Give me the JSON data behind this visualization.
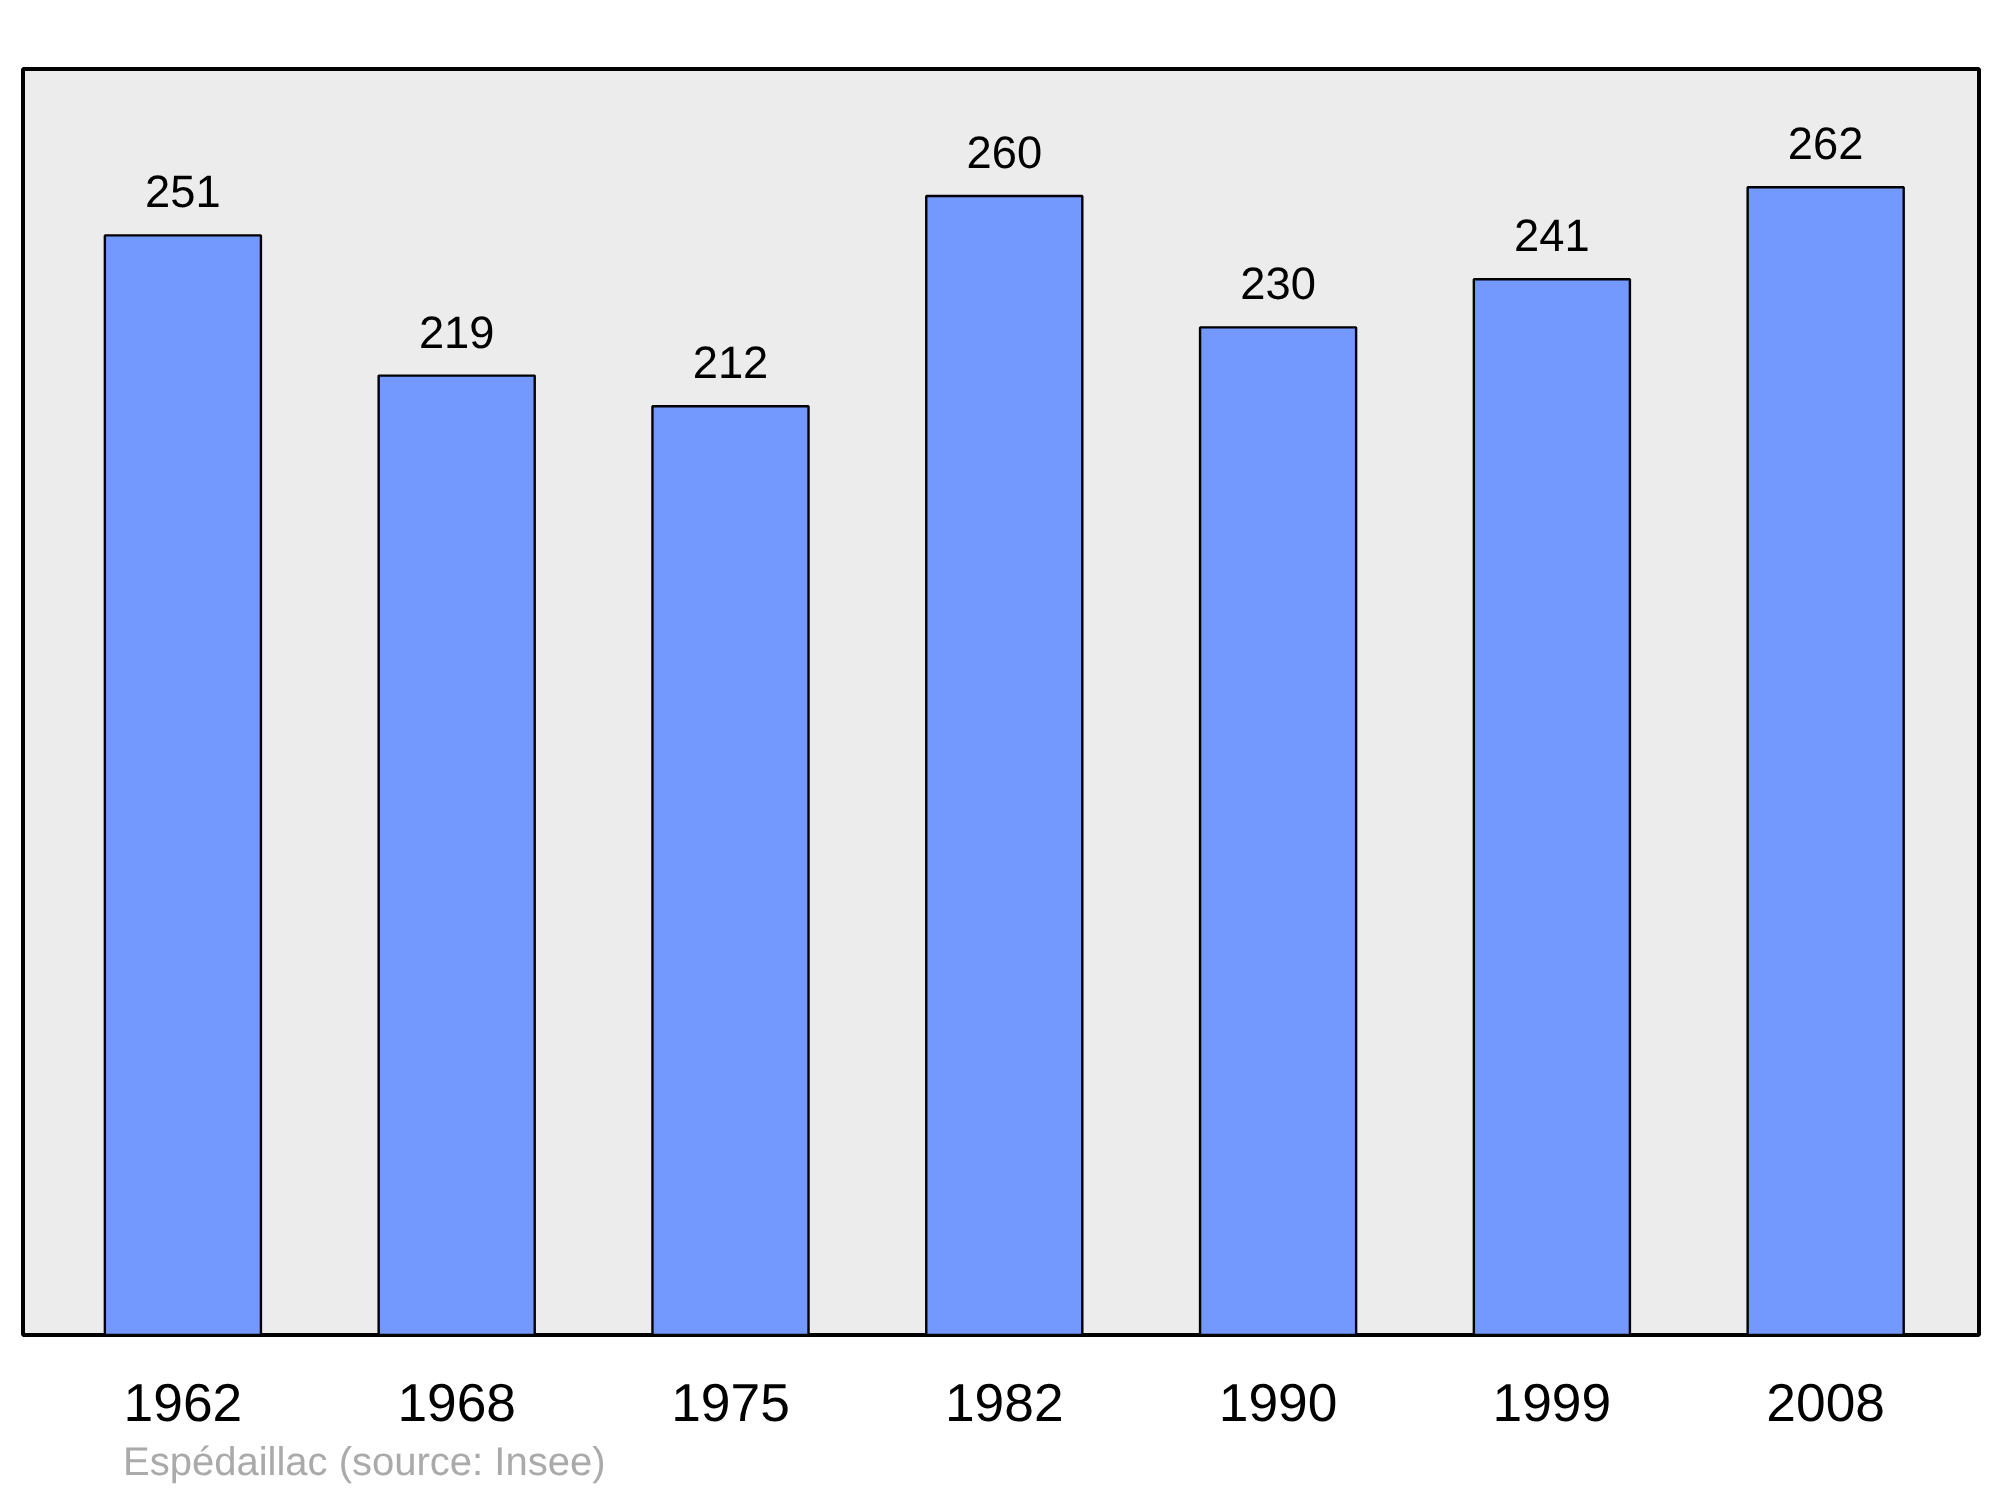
{
  "chart_data": {
    "type": "bar",
    "categories": [
      "1962",
      "1968",
      "1975",
      "1982",
      "1990",
      "1999",
      "2008"
    ],
    "values": [
      251,
      219,
      212,
      260,
      230,
      241,
      262
    ],
    "color": "#7399ff",
    "data_labels": true,
    "tick_labels": "x",
    "annotations": [
      "Espédaillac    (source: Insee)"
    ]
  }
}
